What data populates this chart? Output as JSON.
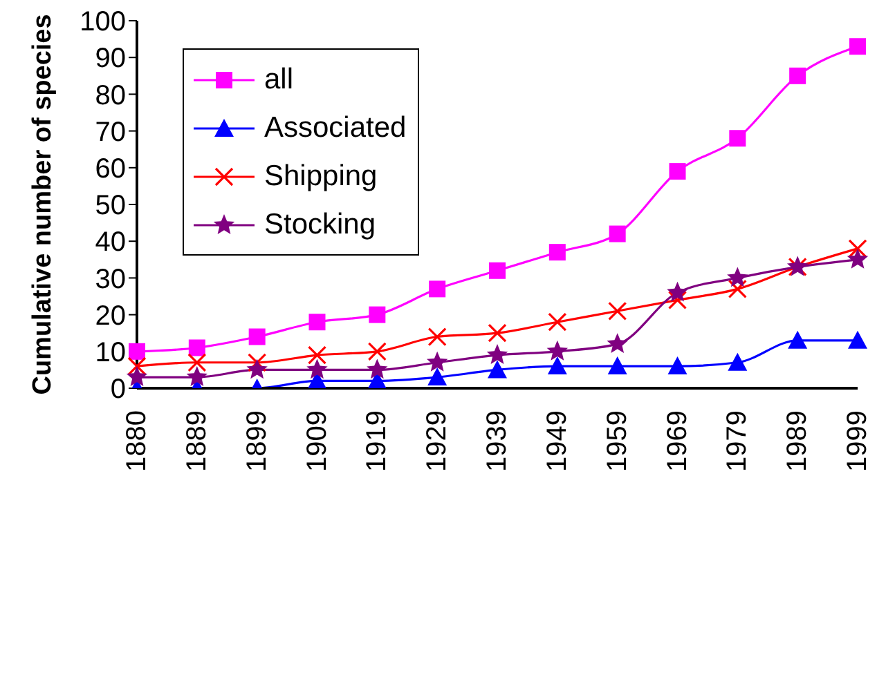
{
  "chart_data": {
    "type": "line",
    "ylabel": "Cumulative number of species",
    "categories": [
      "1880",
      "1889",
      "1899",
      "1909",
      "1919",
      "1929",
      "1939",
      "1949",
      "1959",
      "1969",
      "1979",
      "1989",
      "1999"
    ],
    "series": [
      {
        "name": "all",
        "color": "#ff00ff",
        "marker": "square",
        "values": [
          10,
          11,
          14,
          18,
          20,
          27,
          32,
          37,
          42,
          59,
          68,
          85,
          93
        ]
      },
      {
        "name": "Associated",
        "color": "#0000ff",
        "marker": "triangle",
        "values": [
          0,
          0,
          0,
          2,
          2,
          3,
          5,
          6,
          6,
          6,
          7,
          13,
          13
        ]
      },
      {
        "name": "Shipping",
        "color": "#ff0000",
        "marker": "cross",
        "values": [
          6,
          7,
          7,
          9,
          10,
          14,
          15,
          18,
          21,
          24,
          27,
          33,
          38
        ]
      },
      {
        "name": "Stocking",
        "color": "#800080",
        "marker": "star",
        "values": [
          3,
          3,
          5,
          5,
          5,
          7,
          9,
          10,
          12,
          26,
          30,
          33,
          35
        ]
      }
    ],
    "ylim": [
      0,
      100
    ],
    "yticks": [
      0,
      10,
      20,
      30,
      40,
      50,
      60,
      70,
      80,
      90,
      100
    ],
    "legend": "top left"
  }
}
